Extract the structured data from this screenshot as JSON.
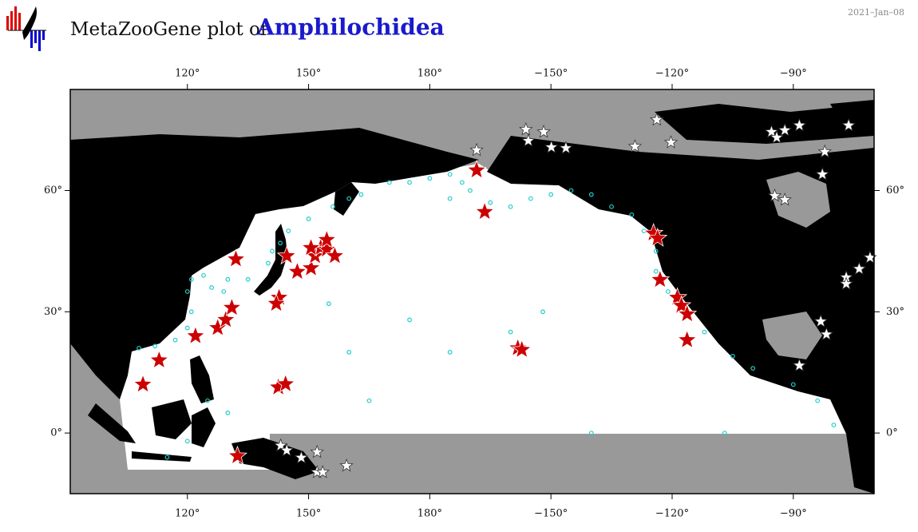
{
  "header": {
    "title": "MetaZooGene plot of",
    "taxon": "Amphilochidea",
    "date": "2021–Jan–08"
  },
  "map": {
    "type": "map",
    "xlim": [
      91,
      -70
    ],
    "ylim": [
      -15,
      85
    ],
    "xticks": [
      {
        "value": 120,
        "label": "120°"
      },
      {
        "value": 150,
        "label": "150°"
      },
      {
        "value": 180,
        "label": "180°"
      },
      {
        "value": -150,
        "label": "−150°"
      },
      {
        "value": -120,
        "label": "−120°"
      },
      {
        "value": -90,
        "label": "−90°"
      }
    ],
    "yticks": [
      {
        "value": 0,
        "label": "0°"
      },
      {
        "value": 30,
        "label": "30°"
      },
      {
        "value": 60,
        "label": "60°"
      }
    ],
    "cyan_points": [
      [
        108,
        21
      ],
      [
        112,
        21.5
      ],
      [
        117,
        23
      ],
      [
        120,
        26
      ],
      [
        121,
        30
      ],
      [
        120,
        35
      ],
      [
        121,
        38
      ],
      [
        124,
        39
      ],
      [
        126,
        36
      ],
      [
        129,
        35
      ],
      [
        130,
        38
      ],
      [
        135,
        38
      ],
      [
        140,
        42
      ],
      [
        141,
        45
      ],
      [
        143,
        47
      ],
      [
        145,
        50
      ],
      [
        150,
        53
      ],
      [
        156,
        56
      ],
      [
        160,
        58
      ],
      [
        163,
        59
      ],
      [
        170,
        62
      ],
      [
        175,
        62
      ],
      [
        180,
        63
      ],
      [
        -175,
        64
      ],
      [
        -172,
        62
      ],
      [
        -170,
        60
      ],
      [
        -175,
        58
      ],
      [
        -165,
        57
      ],
      [
        -160,
        56
      ],
      [
        -155,
        58
      ],
      [
        -150,
        59
      ],
      [
        -145,
        60
      ],
      [
        -140,
        59
      ],
      [
        -135,
        56
      ],
      [
        -130,
        54
      ],
      [
        -127,
        50
      ],
      [
        -124,
        45
      ],
      [
        -124,
        40
      ],
      [
        -121,
        35
      ],
      [
        -112,
        25
      ],
      [
        -105,
        19
      ],
      [
        -100,
        16
      ],
      [
        -90,
        12
      ],
      [
        -84,
        8
      ],
      [
        -80,
        2
      ],
      [
        155,
        32
      ],
      [
        175,
        28
      ],
      [
        -160,
        25
      ],
      [
        -175,
        20
      ],
      [
        -152,
        30
      ],
      [
        165,
        8
      ],
      [
        160,
        20
      ],
      [
        130,
        5
      ],
      [
        125,
        8
      ],
      [
        120,
        -2
      ],
      [
        115,
        -6
      ],
      [
        -140,
        0
      ],
      [
        -107,
        0
      ]
    ],
    "red_stars": [
      [
        109,
        12
      ],
      [
        113,
        18
      ],
      [
        122,
        24
      ],
      [
        127.5,
        26
      ],
      [
        129.5,
        28
      ],
      [
        131,
        31
      ],
      [
        132,
        43
      ],
      [
        142.7,
        33.5
      ],
      [
        142,
        32
      ],
      [
        144.6,
        43.8
      ],
      [
        142.5,
        11.3
      ],
      [
        144.3,
        12.1
      ],
      [
        147.2,
        39.9
      ],
      [
        150.6,
        40.8
      ],
      [
        151.6,
        43.8
      ],
      [
        153,
        45.8
      ],
      [
        154.5,
        45.4
      ],
      [
        156.5,
        43.8
      ],
      [
        154.5,
        47.8
      ],
      [
        150.6,
        45.8
      ],
      [
        -168.4,
        65
      ],
      [
        -166.4,
        54.7
      ],
      [
        -158.2,
        21
      ],
      [
        -157.2,
        20.6
      ],
      [
        -124.6,
        49.4
      ],
      [
        -123.6,
        48.2
      ],
      [
        -123,
        37.9
      ],
      [
        -118.7,
        33.5
      ],
      [
        -117.7,
        31.5
      ],
      [
        -116.3,
        29.4
      ],
      [
        -116.3,
        23
      ],
      [
        132.4,
        -5.7
      ]
    ],
    "white_stars": [
      [
        -168.4,
        70
      ],
      [
        -156.2,
        75.1
      ],
      [
        -155.6,
        72.3
      ],
      [
        -151.8,
        74.5
      ],
      [
        -149.9,
        70.7
      ],
      [
        -146.3,
        70.5
      ],
      [
        -129.2,
        70.9
      ],
      [
        -123.8,
        77.5
      ],
      [
        -120.3,
        71.9
      ],
      [
        -95.4,
        74.5
      ],
      [
        -94.1,
        73.1
      ],
      [
        -92.1,
        74.9
      ],
      [
        -88.5,
        76.1
      ],
      [
        -76.3,
        76.1
      ],
      [
        -82.2,
        69.6
      ],
      [
        -82.8,
        64
      ],
      [
        -94.6,
        58.7
      ],
      [
        -92.1,
        57.7
      ],
      [
        -71,
        43.4
      ],
      [
        -73.7,
        40.6
      ],
      [
        -76.9,
        38.5
      ],
      [
        -76.9,
        36.9
      ],
      [
        -83.2,
        27.6
      ],
      [
        -81.8,
        24.4
      ],
      [
        -88.5,
        16.7
      ],
      [
        143.1,
        -3.1
      ],
      [
        144.6,
        -4.3
      ],
      [
        148.2,
        -6.1
      ],
      [
        152.1,
        -4.7
      ],
      [
        152.1,
        -9.7
      ],
      [
        153.5,
        -9.7
      ],
      [
        159.4,
        -8.1
      ]
    ]
  }
}
